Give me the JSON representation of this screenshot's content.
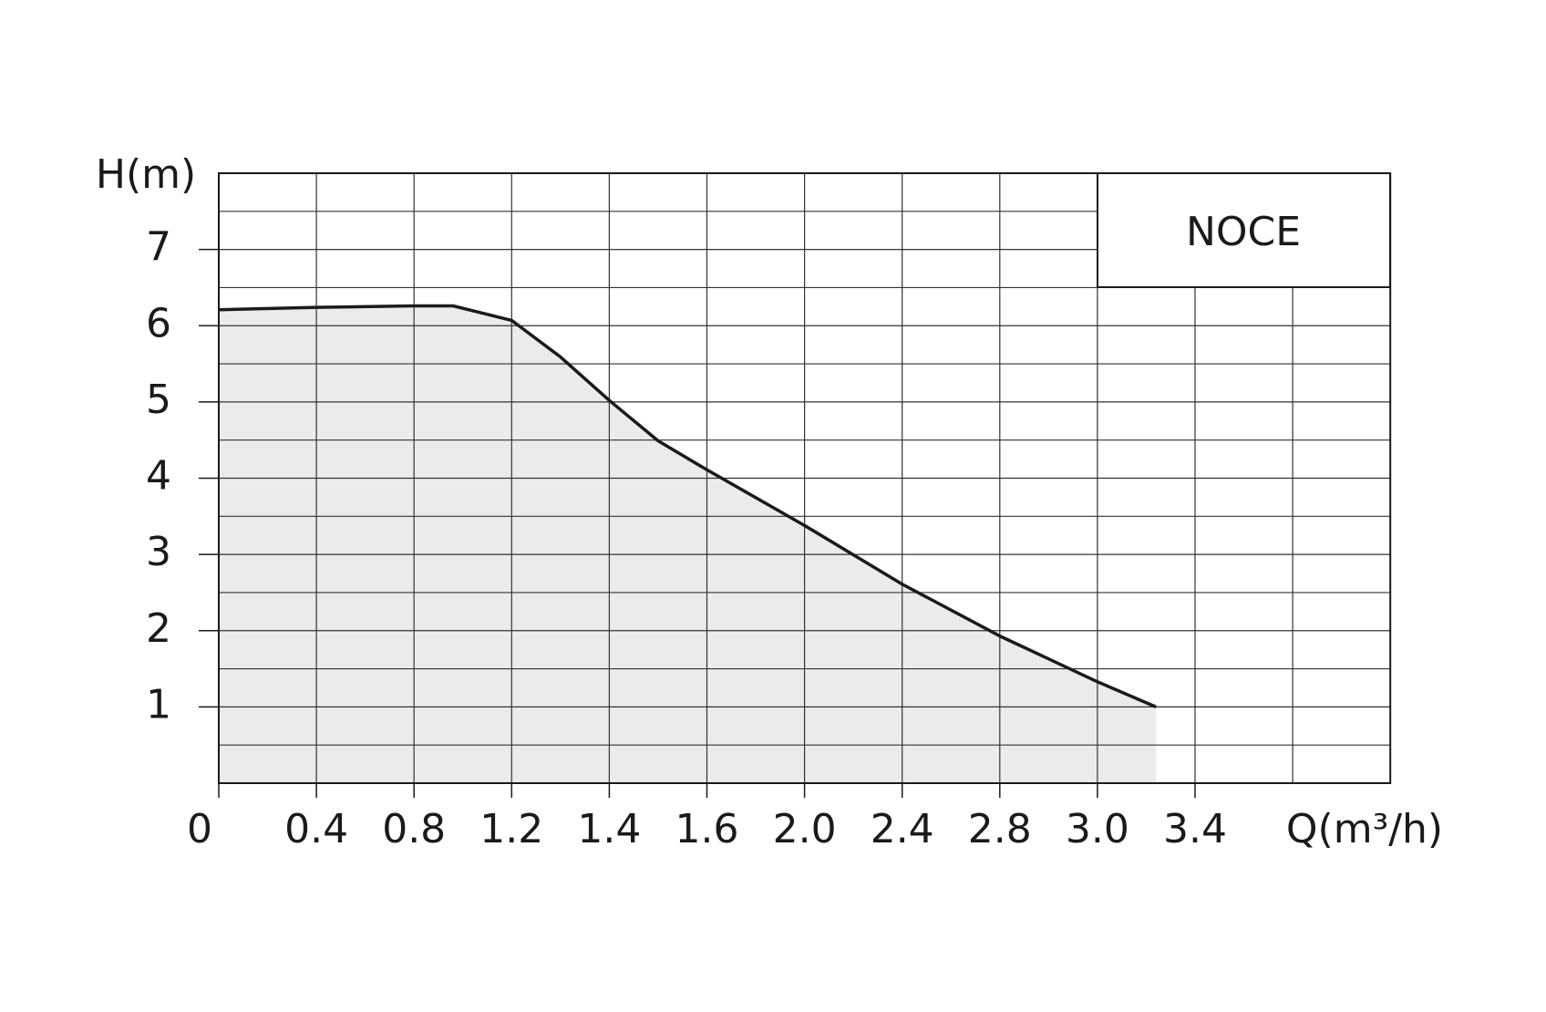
{
  "chart_data": {
    "type": "line",
    "x_label": "Q(m³/h)",
    "y_label": "H(m)",
    "x": [
      0,
      0.4,
      0.8,
      0.96,
      1.2,
      1.3,
      1.4,
      1.5,
      1.6,
      2.0,
      2.4,
      2.8,
      3.0,
      3.24
    ],
    "series": [
      {
        "name": "NOCE",
        "color": "#1a1a1a",
        "values": [
          6.21,
          6.24,
          6.26,
          6.26,
          6.07,
          5.59,
          5.02,
          4.49,
          4.11,
          3.38,
          2.61,
          1.93,
          1.33,
          1.0
        ]
      }
    ],
    "fill_color": "#ebebeb",
    "ylim": [
      0,
      8
    ],
    "yticks": [
      1,
      2,
      3,
      4,
      5,
      6,
      7
    ],
    "xticks": [
      0,
      0.4,
      0.8,
      1.2,
      1.4,
      1.6,
      {
        "value": 2,
        "label": "2.0"
      },
      2.4,
      2.8,
      {
        "value": 3,
        "label": "3.0"
      },
      3.4
    ],
    "grid": true
  }
}
